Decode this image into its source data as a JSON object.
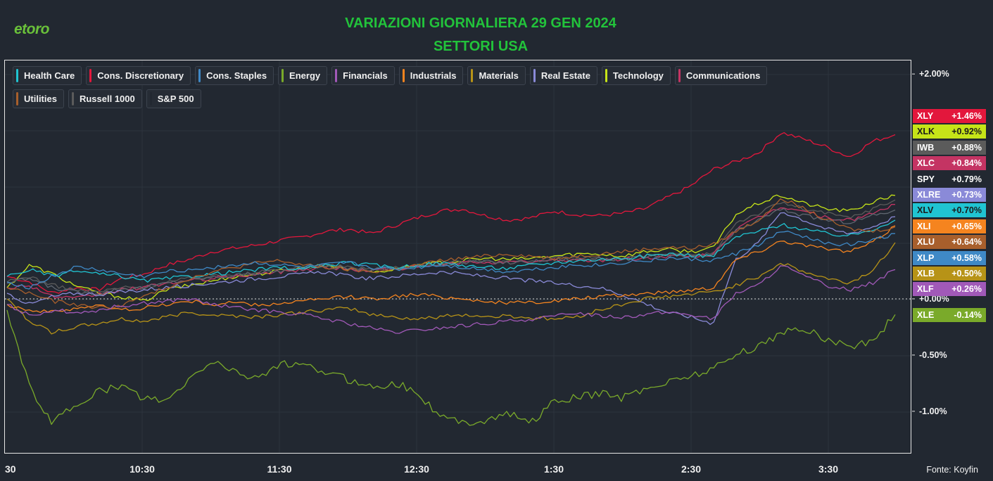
{
  "header": {
    "logo": "etoro",
    "title_line1": "VARIAZIONI GIORNALIERA 29 GEN 2024",
    "title_line2": "SETTORI USA",
    "source": "Fonte: Koyfin"
  },
  "chart_data": {
    "type": "line",
    "title": "VARIAZIONI GIORNALIERA 29 GEN 2024",
    "subtitle": "SETTORI USA",
    "x_range": [
      "9:30",
      "16:00"
    ],
    "x_ticks": [
      "30",
      "10:30",
      "11:30",
      "12:30",
      "1:30",
      "2:30",
      "3:30"
    ],
    "y_ticks": [
      {
        "value": 2.0,
        "label": "+2.00%"
      },
      {
        "value": 0.0,
        "label": "+0.00%"
      },
      {
        "value": -0.5,
        "label": "-0.50%"
      },
      {
        "value": -1.0,
        "label": "-1.00%"
      }
    ],
    "ylim": [
      -1.37,
      2.12
    ],
    "zero_line": true,
    "grid": true,
    "legend_position": "top-left",
    "legend": [
      {
        "label": "Health Care",
        "color": "#20c4d2"
      },
      {
        "label": "Cons. Discretionary",
        "color": "#e3173c"
      },
      {
        "label": "Cons. Staples",
        "color": "#3f89c6"
      },
      {
        "label": "Energy",
        "color": "#7aaa2a"
      },
      {
        "label": "Financials",
        "color": "#a159b8"
      },
      {
        "label": "Industrials",
        "color": "#f5841f"
      },
      {
        "label": "Materials",
        "color": "#b79317"
      },
      {
        "label": "Real Estate",
        "color": "#8a8ad8"
      },
      {
        "label": "Technology",
        "color": "#c6e418"
      },
      {
        "label": "Communications",
        "color": "#c43463"
      },
      {
        "label": "Utilities",
        "color": "#a85f2c"
      },
      {
        "label": "Russell 1000",
        "color": "#5b5b5b"
      },
      {
        "label": "S&P 500",
        "color": "#222831"
      }
    ],
    "series": [
      {
        "ticker": "XLY",
        "change": "+1.46%",
        "color": "#e3173c",
        "values": [
          0.2,
          0.15,
          0.05,
          0.1,
          0.08,
          0.18,
          0.22,
          0.3,
          0.35,
          0.42,
          0.45,
          0.48,
          0.52,
          0.55,
          0.6,
          0.62,
          0.58,
          0.65,
          0.72,
          0.78,
          0.8,
          0.74,
          0.7,
          0.72,
          0.78,
          0.75,
          0.74,
          0.76,
          0.8,
          0.9,
          1.0,
          1.15,
          1.22,
          1.3,
          1.48,
          1.42,
          1.35,
          1.26,
          1.4,
          1.46
        ]
      },
      {
        "ticker": "XLK",
        "change": "+0.92%",
        "color": "#c6e418",
        "values": [
          0.1,
          0.3,
          0.22,
          0.12,
          0.05,
          0.02,
          -0.02,
          0.08,
          0.12,
          0.16,
          0.2,
          0.22,
          0.25,
          0.28,
          0.3,
          0.27,
          0.24,
          0.26,
          0.3,
          0.32,
          0.34,
          0.36,
          0.35,
          0.36,
          0.38,
          0.4,
          0.4,
          0.38,
          0.42,
          0.44,
          0.42,
          0.45,
          0.75,
          0.85,
          0.92,
          0.85,
          0.8,
          0.78,
          0.86,
          0.92
        ]
      },
      {
        "ticker": "IWB",
        "change": "+0.88%",
        "color": "#5b5b5b",
        "values": [
          0.15,
          0.2,
          0.12,
          0.08,
          0.06,
          0.1,
          0.1,
          0.15,
          0.18,
          0.2,
          0.22,
          0.24,
          0.26,
          0.28,
          0.3,
          0.28,
          0.27,
          0.28,
          0.3,
          0.32,
          0.33,
          0.34,
          0.33,
          0.34,
          0.36,
          0.36,
          0.37,
          0.36,
          0.38,
          0.4,
          0.38,
          0.4,
          0.68,
          0.76,
          0.86,
          0.8,
          0.76,
          0.72,
          0.8,
          0.88
        ]
      },
      {
        "ticker": "XLC",
        "change": "+0.84%",
        "color": "#c43463",
        "values": [
          0.1,
          0.12,
          0.02,
          0.0,
          0.04,
          0.08,
          0.1,
          0.14,
          0.16,
          0.18,
          0.2,
          0.22,
          0.24,
          0.26,
          0.28,
          0.26,
          0.25,
          0.27,
          0.28,
          0.3,
          0.32,
          0.33,
          0.32,
          0.33,
          0.34,
          0.35,
          0.34,
          0.35,
          0.36,
          0.38,
          0.37,
          0.4,
          0.62,
          0.72,
          0.82,
          0.78,
          0.72,
          0.7,
          0.76,
          0.84
        ]
      },
      {
        "ticker": "SPY",
        "change": "+0.79%",
        "color": "#5f6670",
        "values": [
          0.14,
          0.18,
          0.1,
          0.06,
          0.05,
          0.09,
          0.1,
          0.14,
          0.17,
          0.19,
          0.21,
          0.23,
          0.25,
          0.27,
          0.29,
          0.27,
          0.26,
          0.27,
          0.29,
          0.31,
          0.32,
          0.33,
          0.32,
          0.33,
          0.35,
          0.35,
          0.36,
          0.35,
          0.37,
          0.39,
          0.37,
          0.39,
          0.6,
          0.7,
          0.8,
          0.74,
          0.7,
          0.68,
          0.74,
          0.79
        ]
      },
      {
        "ticker": "XLRE",
        "change": "+0.73%",
        "color": "#8a8ad8",
        "values": [
          0.05,
          -0.05,
          0.02,
          0.05,
          0.04,
          0.06,
          0.08,
          0.1,
          0.12,
          0.14,
          0.16,
          0.18,
          0.2,
          0.22,
          0.24,
          0.2,
          0.18,
          0.2,
          0.22,
          0.24,
          0.22,
          0.2,
          0.18,
          0.16,
          0.14,
          0.12,
          0.1,
          0.04,
          -0.04,
          -0.12,
          -0.16,
          -0.22,
          0.35,
          0.5,
          0.78,
          0.7,
          0.62,
          0.58,
          0.64,
          0.73
        ]
      },
      {
        "ticker": "XLV",
        "change": "+0.70%",
        "color": "#20c4d2",
        "values": [
          0.2,
          0.26,
          0.2,
          0.25,
          0.22,
          0.2,
          0.16,
          0.18,
          0.2,
          0.22,
          0.24,
          0.26,
          0.28,
          0.26,
          0.3,
          0.32,
          0.3,
          0.28,
          0.3,
          0.32,
          0.3,
          0.28,
          0.27,
          0.3,
          0.32,
          0.34,
          0.35,
          0.36,
          0.38,
          0.4,
          0.39,
          0.38,
          0.55,
          0.6,
          0.66,
          0.62,
          0.58,
          0.56,
          0.62,
          0.7
        ]
      },
      {
        "ticker": "XLI",
        "change": "+0.65%",
        "color": "#f5841f",
        "values": [
          -0.05,
          -0.1,
          -0.12,
          -0.08,
          -0.06,
          -0.1,
          -0.08,
          -0.05,
          -0.02,
          -0.05,
          -0.03,
          -0.06,
          -0.04,
          -0.02,
          0.0,
          0.02,
          0.0,
          0.02,
          0.04,
          0.02,
          0.0,
          -0.02,
          -0.04,
          -0.03,
          -0.02,
          0.0,
          0.02,
          0.03,
          0.05,
          0.06,
          0.08,
          0.1,
          0.35,
          0.42,
          0.52,
          0.48,
          0.44,
          0.42,
          0.5,
          0.65
        ]
      },
      {
        "ticker": "XLU",
        "change": "+0.64%",
        "color": "#a85f2c",
        "values": [
          0.1,
          0.05,
          -0.02,
          -0.05,
          -0.08,
          -0.06,
          0.02,
          0.1,
          0.18,
          0.24,
          0.28,
          0.32,
          0.34,
          0.3,
          0.28,
          0.26,
          0.24,
          0.26,
          0.3,
          0.34,
          0.36,
          0.38,
          0.4,
          0.38,
          0.36,
          0.38,
          0.4,
          0.42,
          0.44,
          0.46,
          0.45,
          0.48,
          0.6,
          0.7,
          0.9,
          0.8,
          0.7,
          0.62,
          0.6,
          0.64
        ]
      },
      {
        "ticker": "XLP",
        "change": "+0.58%",
        "color": "#3f89c6",
        "values": [
          0.15,
          0.1,
          0.2,
          0.28,
          0.26,
          0.22,
          0.2,
          0.24,
          0.26,
          0.28,
          0.3,
          0.32,
          0.3,
          0.28,
          0.3,
          0.32,
          0.28,
          0.26,
          0.28,
          0.3,
          0.28,
          0.26,
          0.24,
          0.26,
          0.28,
          0.3,
          0.3,
          0.32,
          0.34,
          0.36,
          0.35,
          0.34,
          0.4,
          0.48,
          0.6,
          0.55,
          0.5,
          0.48,
          0.52,
          0.58
        ]
      },
      {
        "ticker": "XLB",
        "change": "+0.50%",
        "color": "#b79317",
        "values": [
          0.0,
          -0.2,
          -0.3,
          -0.25,
          -0.22,
          -0.18,
          -0.2,
          -0.16,
          -0.12,
          -0.14,
          -0.15,
          -0.16,
          -0.14,
          -0.12,
          -0.1,
          -0.08,
          -0.14,
          -0.16,
          -0.18,
          -0.16,
          -0.14,
          -0.16,
          -0.15,
          -0.17,
          -0.18,
          -0.16,
          -0.1,
          -0.05,
          0.0,
          0.02,
          0.04,
          0.06,
          0.12,
          0.2,
          0.32,
          0.24,
          0.18,
          0.14,
          0.25,
          0.5
        ]
      },
      {
        "ticker": "XLF",
        "change": "+0.26%",
        "color": "#a159b8",
        "values": [
          -0.05,
          -0.15,
          -0.1,
          -0.12,
          -0.1,
          -0.06,
          -0.04,
          -0.02,
          0.0,
          -0.05,
          -0.08,
          -0.1,
          -0.12,
          -0.14,
          -0.18,
          -0.22,
          -0.26,
          -0.3,
          -0.28,
          -0.26,
          -0.24,
          -0.22,
          -0.2,
          -0.18,
          -0.16,
          -0.12,
          -0.15,
          -0.16,
          -0.14,
          -0.12,
          -0.14,
          -0.18,
          0.05,
          0.12,
          0.3,
          0.2,
          0.12,
          0.08,
          0.14,
          0.26
        ]
      },
      {
        "ticker": "XLE",
        "change": "-0.14%",
        "color": "#7aaa2a",
        "values": [
          -0.1,
          -0.8,
          -1.1,
          -0.95,
          -0.82,
          -0.78,
          -0.88,
          -0.92,
          -0.72,
          -0.55,
          -0.65,
          -0.7,
          -0.58,
          -0.6,
          -0.65,
          -0.72,
          -0.78,
          -0.75,
          -0.82,
          -1.05,
          -1.1,
          -1.08,
          -1.02,
          -1.1,
          -0.92,
          -0.88,
          -0.84,
          -0.88,
          -0.8,
          -0.74,
          -0.68,
          -0.62,
          -0.5,
          -0.42,
          -0.3,
          -0.26,
          -0.36,
          -0.42,
          -0.38,
          -0.14
        ]
      }
    ]
  }
}
